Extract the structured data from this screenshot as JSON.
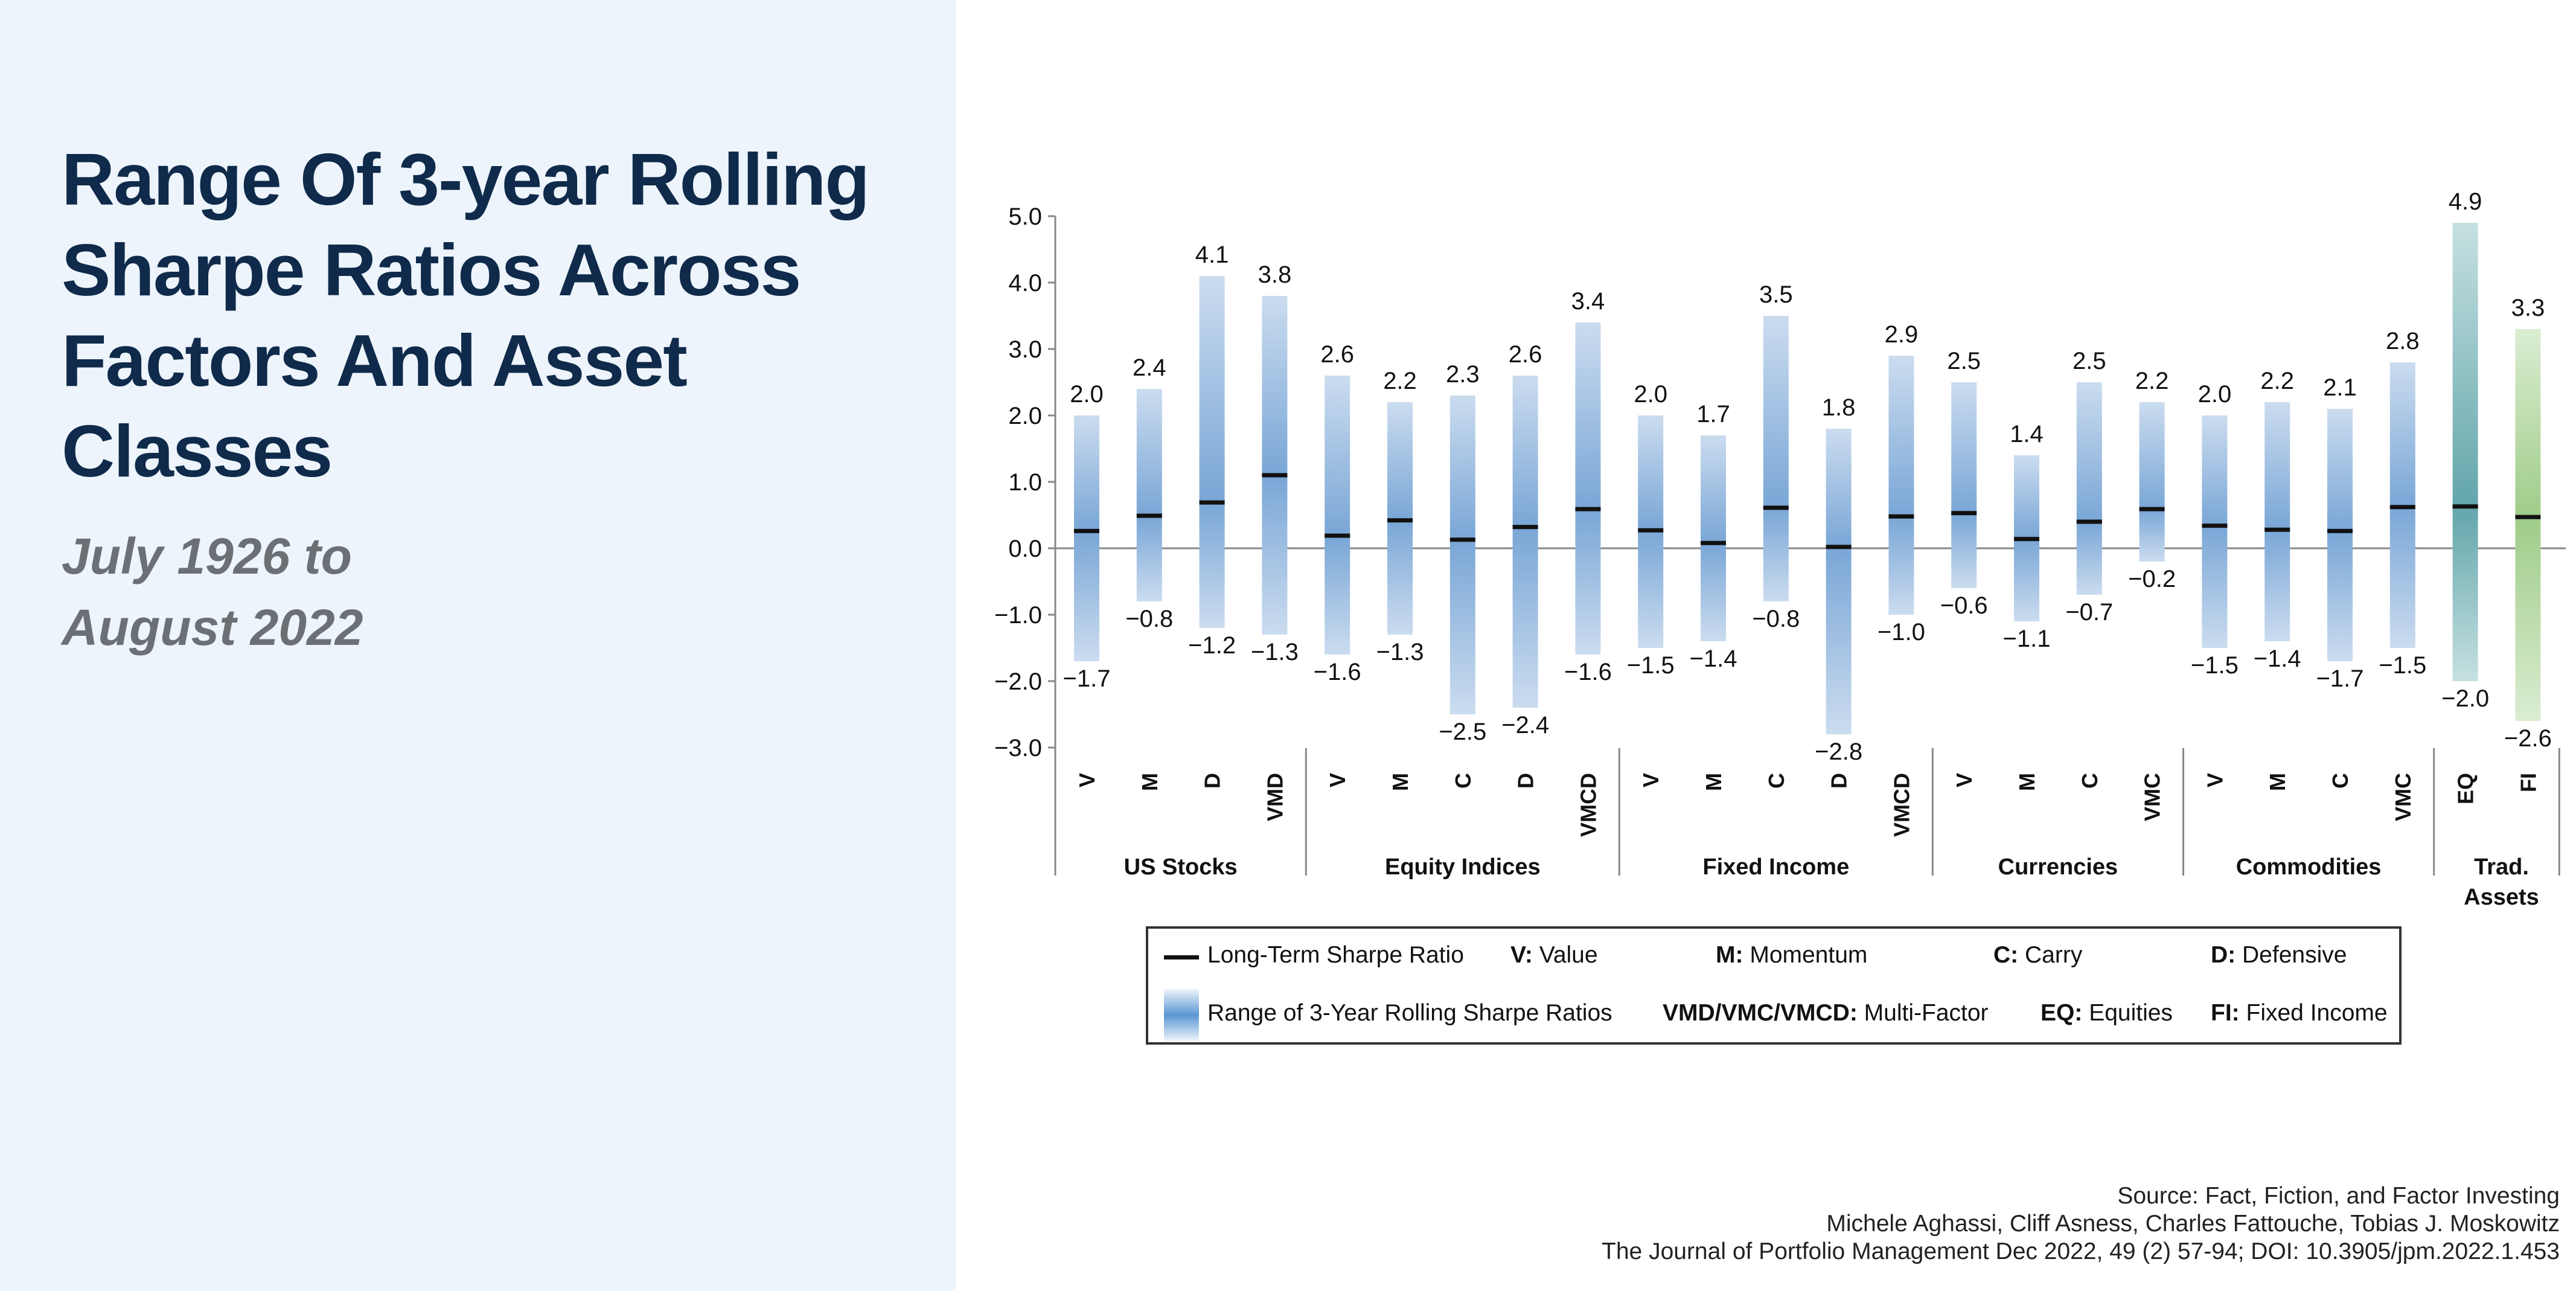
{
  "title": "Range Of 3-year Rolling Sharpe Ratios Across Factors And Asset Classes",
  "subtitle_line1": "July 1926 to",
  "subtitle_line2": "August 2022",
  "source": {
    "line1": "Source: Fact, Fiction, and Factor Investing",
    "line2": "Michele Aghassi, Cliff Asness, Charles Fattouche, Tobias J. Moskowitz",
    "line3": "The Journal of Portfolio Management Dec 2022, 49 (2) 57-94; DOI: 10.3905/jpm.2022.1.453"
  },
  "legend": {
    "long_term": "Long-Term Sharpe Ratio",
    "range": "Range of 3-Year Rolling Sharpe Ratios",
    "v_key": "V:",
    "v_val": "Value",
    "m_key": "M:",
    "m_val": "Momentum",
    "c_key": "C:",
    "c_val": "Carry",
    "d_key": "D:",
    "d_val": "Defensive",
    "mf_key": "VMD/VMC/VMCD:",
    "mf_val": "Multi-Factor",
    "eq_key": "EQ:",
    "eq_val": "Equities",
    "fi_key": "FI:",
    "fi_val": "Fixed Income"
  },
  "colors": {
    "blue_dark": "#79a6d6",
    "blue_light": "#cbdcef",
    "teal_dark": "#62a6ab",
    "teal_light": "#c6e0e1",
    "green_dark": "#9fcc89",
    "green_light": "#daedd1",
    "title": "#0f2a4a"
  },
  "chart_data": {
    "type": "range-bar",
    "ylim": [
      -3.0,
      5.0
    ],
    "yticks": [
      "5.0",
      "4.0",
      "3.0",
      "2.0",
      "1.0",
      "0.0",
      "-1.0",
      "-2.0",
      "-3.0"
    ],
    "grid": false,
    "groups": [
      {
        "name": "US Stocks",
        "bars": [
          {
            "label": "V",
            "max": 2.0,
            "min": -1.7,
            "lt": 0.26,
            "max_label": "2.0",
            "min_label": "−1.7"
          },
          {
            "label": "M",
            "max": 2.4,
            "min": -0.8,
            "lt": 0.49,
            "max_label": "2.4",
            "min_label": "−0.8"
          },
          {
            "label": "D",
            "max": 4.1,
            "min": -1.2,
            "lt": 0.69,
            "max_label": "4.1",
            "min_label": "−1.2"
          },
          {
            "label": "VMD",
            "max": 3.8,
            "min": -1.3,
            "lt": 1.1,
            "max_label": "3.8",
            "min_label": "−1.3"
          }
        ]
      },
      {
        "name": "Equity Indices",
        "bars": [
          {
            "label": "V",
            "max": 2.6,
            "min": -1.6,
            "lt": 0.19,
            "max_label": "2.6",
            "min_label": "−1.6"
          },
          {
            "label": "M",
            "max": 2.2,
            "min": -1.3,
            "lt": 0.42,
            "max_label": "2.2",
            "min_label": "−1.3"
          },
          {
            "label": "C",
            "max": 2.3,
            "min": -2.5,
            "lt": 0.13,
            "max_label": "2.3",
            "min_label": "−2.5"
          },
          {
            "label": "D",
            "max": 2.6,
            "min": -2.4,
            "lt": 0.32,
            "max_label": "2.6",
            "min_label": "−2.4"
          },
          {
            "label": "VMCD",
            "max": 3.4,
            "min": -1.6,
            "lt": 0.59,
            "max_label": "3.4",
            "min_label": "−1.6"
          }
        ]
      },
      {
        "name": "Fixed Income",
        "bars": [
          {
            "label": "V",
            "max": 2.0,
            "min": -1.5,
            "lt": 0.27,
            "max_label": "2.0",
            "min_label": "−1.5"
          },
          {
            "label": "M",
            "max": 1.7,
            "min": -1.4,
            "lt": 0.08,
            "max_label": "1.7",
            "min_label": "−1.4"
          },
          {
            "label": "C",
            "max": 3.5,
            "min": -0.8,
            "lt": 0.61,
            "max_label": "3.5",
            "min_label": "−0.8"
          },
          {
            "label": "D",
            "max": 1.8,
            "min": -2.8,
            "lt": 0.02,
            "max_label": "1.8",
            "min_label": "−2.8"
          },
          {
            "label": "VMCD",
            "max": 2.9,
            "min": -1.0,
            "lt": 0.48,
            "max_label": "2.9",
            "min_label": "−1.0"
          }
        ]
      },
      {
        "name": "Currencies",
        "bars": [
          {
            "label": "V",
            "max": 2.5,
            "min": -0.6,
            "lt": 0.53,
            "max_label": "2.5",
            "min_label": "−0.6"
          },
          {
            "label": "M",
            "max": 1.4,
            "min": -1.1,
            "lt": 0.14,
            "max_label": "1.4",
            "min_label": "−1.1"
          },
          {
            "label": "C",
            "max": 2.5,
            "min": -0.7,
            "lt": 0.4,
            "max_label": "2.5",
            "min_label": "−0.7"
          },
          {
            "label": "VMC",
            "max": 2.2,
            "min": -0.2,
            "lt": 0.59,
            "max_label": "2.2",
            "min_label": "−0.2"
          }
        ]
      },
      {
        "name": "Commodities",
        "bars": [
          {
            "label": "V",
            "max": 2.0,
            "min": -1.5,
            "lt": 0.34,
            "max_label": "2.0",
            "min_label": "−1.5"
          },
          {
            "label": "M",
            "max": 2.2,
            "min": -1.4,
            "lt": 0.28,
            "max_label": "2.2",
            "min_label": "−1.4"
          },
          {
            "label": "C",
            "max": 2.1,
            "min": -1.7,
            "lt": 0.26,
            "max_label": "2.1",
            "min_label": "−1.7"
          },
          {
            "label": "VMC",
            "max": 2.8,
            "min": -1.5,
            "lt": 0.62,
            "max_label": "2.8",
            "min_label": "−1.5"
          }
        ]
      },
      {
        "name": "Trad. Assets",
        "name_line1": "Trad.",
        "name_line2": "Assets",
        "bars": [
          {
            "label": "EQ",
            "max": 4.9,
            "min": -2.0,
            "lt": 0.63,
            "max_label": "4.9",
            "min_label": "−2.0",
            "color": "teal"
          },
          {
            "label": "FI",
            "max": 3.3,
            "min": -2.6,
            "lt": 0.47,
            "max_label": "3.3",
            "min_label": "−2.6",
            "color": "green"
          }
        ]
      }
    ]
  }
}
